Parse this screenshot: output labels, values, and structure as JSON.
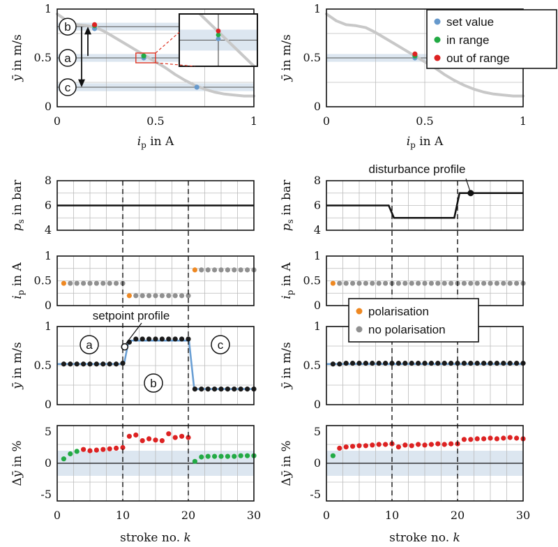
{
  "colors": {
    "set_value": "#6699cc",
    "in_range": "#22aa44",
    "out_of_range": "#dd2222",
    "polarisation": "#ee8822",
    "no_polarisation": "#909090",
    "curve": "#c8c8c8",
    "band": "#dce6f0",
    "profile_line": "#6a9fd4",
    "marker_black": "#1a1a1a",
    "grid": "#bbbbbb"
  },
  "legends": {
    "top": [
      "set value",
      "in range",
      "out of range"
    ],
    "middle": [
      "polarisation",
      "no polarisation"
    ]
  },
  "annotations": {
    "setpoint_profile": "setpoint profile",
    "disturbance_profile": "disturbance profile",
    "circle_a": "a",
    "circle_b": "b",
    "circle_c": "c"
  },
  "chart_data": [
    {
      "id": "tl",
      "type": "line",
      "xlabel": "i_p in A",
      "ylabel": "ȳ in m/s",
      "xlim": [
        0,
        1
      ],
      "ylim": [
        0,
        1
      ],
      "xticks": [
        0,
        0.5,
        1
      ],
      "yticks": [
        0,
        0.5,
        1
      ],
      "xtick_labels": [
        "0",
        "0.5",
        "1"
      ],
      "ytick_labels": [
        "0",
        "0.5",
        "1"
      ],
      "curve": {
        "x": [
          0,
          0.05,
          0.1,
          0.15,
          0.2,
          0.25,
          0.3,
          0.35,
          0.4,
          0.45,
          0.5,
          0.55,
          0.6,
          0.65,
          0.7,
          0.75,
          0.8,
          0.85,
          0.9,
          0.95,
          1.0
        ],
        "y": [
          0.95,
          0.88,
          0.84,
          0.83,
          0.81,
          0.76,
          0.7,
          0.64,
          0.58,
          0.52,
          0.46,
          0.4,
          0.33,
          0.27,
          0.22,
          0.18,
          0.15,
          0.13,
          0.12,
          0.11,
          0.11
        ]
      },
      "bands": [
        {
          "y": 0.82,
          "half": 0.04
        },
        {
          "y": 0.5,
          "half": 0.04
        },
        {
          "y": 0.2,
          "half": 0.04
        }
      ],
      "hlines": [
        0.82,
        0.5,
        0.2
      ],
      "points": [
        {
          "x": 0.19,
          "y": 0.8,
          "kind": "set_value"
        },
        {
          "x": 0.19,
          "y": 0.83,
          "kind": "in_range"
        },
        {
          "x": 0.19,
          "y": 0.84,
          "kind": "out_of_range"
        },
        {
          "x": 0.44,
          "y": 0.5,
          "kind": "set_value"
        },
        {
          "x": 0.44,
          "y": 0.52,
          "kind": "in_range"
        },
        {
          "x": 0.71,
          "y": 0.2,
          "kind": "set_value"
        }
      ],
      "inset": {
        "xlim": [
          0.32,
          0.56
        ],
        "ylim": [
          0.4,
          0.6
        ],
        "vline": 0.44,
        "points": [
          {
            "x": 0.44,
            "y": 0.505,
            "kind": "set_value"
          },
          {
            "x": 0.44,
            "y": 0.52,
            "kind": "in_range"
          },
          {
            "x": 0.44,
            "y": 0.535,
            "kind": "out_of_range"
          }
        ]
      }
    },
    {
      "id": "tr",
      "type": "line",
      "xlabel": "i_p in A",
      "ylabel": "ȳ in m/s",
      "xlim": [
        0,
        1
      ],
      "ylim": [
        0,
        1
      ],
      "xticks": [
        0,
        0.5,
        1
      ],
      "yticks": [
        0,
        0.5,
        1
      ],
      "xtick_labels": [
        "0",
        "0.5",
        "1"
      ],
      "ytick_labels": [
        "0",
        "0.5",
        "1"
      ],
      "curve": {
        "x": [
          0,
          0.05,
          0.1,
          0.15,
          0.2,
          0.25,
          0.3,
          0.35,
          0.4,
          0.45,
          0.5,
          0.55,
          0.6,
          0.65,
          0.7,
          0.75,
          0.8,
          0.85,
          0.9,
          0.95,
          1.0
        ],
        "y": [
          0.95,
          0.88,
          0.84,
          0.83,
          0.81,
          0.76,
          0.7,
          0.64,
          0.58,
          0.52,
          0.46,
          0.4,
          0.33,
          0.27,
          0.22,
          0.18,
          0.15,
          0.13,
          0.12,
          0.11,
          0.11
        ]
      },
      "bands": [
        {
          "y": 0.5,
          "half": 0.04
        }
      ],
      "hlines": [
        0.5
      ],
      "points": [
        {
          "x": 0.45,
          "y": 0.5,
          "kind": "set_value"
        },
        {
          "x": 0.45,
          "y": 0.52,
          "kind": "in_range"
        },
        {
          "x": 0.45,
          "y": 0.54,
          "kind": "out_of_range"
        }
      ]
    },
    {
      "id": "ps_l",
      "type": "line",
      "ylabel": "p_s in bar",
      "xlim": [
        0,
        30
      ],
      "ylim": [
        4,
        8
      ],
      "yticks": [
        4,
        6,
        8
      ],
      "ytick_labels": [
        "4",
        "6",
        "8"
      ],
      "line": {
        "x": [
          0,
          30
        ],
        "y": [
          6,
          6
        ]
      }
    },
    {
      "id": "ps_r",
      "type": "line",
      "ylabel": "p_s in bar",
      "xlim": [
        0,
        30
      ],
      "ylim": [
        4,
        8
      ],
      "yticks": [
        4,
        6,
        8
      ],
      "ytick_labels": [
        "4",
        "6",
        "8"
      ],
      "line": {
        "x": [
          0,
          9.5,
          10.3,
          19.5,
          20.3,
          30
        ],
        "y": [
          6,
          6,
          5,
          5,
          7,
          7
        ]
      },
      "marker": {
        "x": 22,
        "y": 7
      }
    },
    {
      "id": "ip_l",
      "type": "scatter",
      "ylabel": "i_p in A",
      "xlim": [
        0,
        30
      ],
      "ylim": [
        0,
        1
      ],
      "yticks": [
        0,
        0.5,
        1
      ],
      "ytick_labels": [
        "0",
        "0.5",
        "1"
      ],
      "k": [
        1,
        2,
        3,
        4,
        5,
        6,
        7,
        8,
        9,
        10,
        11,
        12,
        13,
        14,
        15,
        16,
        17,
        18,
        19,
        20,
        21,
        22,
        23,
        24,
        25,
        26,
        27,
        28,
        29,
        30
      ],
      "values": [
        0.45,
        0.45,
        0.45,
        0.45,
        0.45,
        0.45,
        0.45,
        0.45,
        0.45,
        0.45,
        0.2,
        0.2,
        0.2,
        0.2,
        0.2,
        0.2,
        0.2,
        0.2,
        0.2,
        0.2,
        0.72,
        0.72,
        0.72,
        0.72,
        0.72,
        0.72,
        0.72,
        0.72,
        0.72,
        0.72
      ],
      "polarised_k": [
        1,
        11,
        21
      ]
    },
    {
      "id": "ip_r",
      "type": "scatter",
      "ylabel": "i_p in A",
      "xlim": [
        0,
        30
      ],
      "ylim": [
        0,
        1
      ],
      "yticks": [
        0,
        0.5,
        1
      ],
      "ytick_labels": [
        "0",
        "0.5",
        "1"
      ],
      "k": [
        1,
        2,
        3,
        4,
        5,
        6,
        7,
        8,
        9,
        10,
        11,
        12,
        13,
        14,
        15,
        16,
        17,
        18,
        19,
        20,
        21,
        22,
        23,
        24,
        25,
        26,
        27,
        28,
        29,
        30
      ],
      "values": [
        0.45,
        0.45,
        0.45,
        0.45,
        0.45,
        0.45,
        0.45,
        0.45,
        0.45,
        0.45,
        0.45,
        0.45,
        0.45,
        0.45,
        0.45,
        0.45,
        0.45,
        0.45,
        0.45,
        0.45,
        0.45,
        0.45,
        0.45,
        0.45,
        0.45,
        0.45,
        0.45,
        0.45,
        0.45,
        0.45
      ],
      "polarised_k": [
        1
      ]
    },
    {
      "id": "y_l",
      "type": "scatter",
      "ylabel": "ȳ in m/s",
      "xlim": [
        0,
        30
      ],
      "ylim": [
        0,
        1
      ],
      "yticks": [
        0,
        0.5,
        1
      ],
      "ytick_labels": [
        "0",
        "0.5",
        "1"
      ],
      "setpoint": {
        "x": [
          0,
          10.2,
          10.9,
          20.1,
          20.9,
          30
        ],
        "y": [
          0.52,
          0.52,
          0.82,
          0.82,
          0.2,
          0.2
        ]
      },
      "k": [
        1,
        2,
        3,
        4,
        5,
        6,
        7,
        8,
        9,
        10,
        11,
        12,
        13,
        14,
        15,
        16,
        17,
        18,
        19,
        20,
        21,
        22,
        23,
        24,
        25,
        26,
        27,
        28,
        29,
        30
      ],
      "values": [
        0.52,
        0.52,
        0.52,
        0.52,
        0.52,
        0.52,
        0.52,
        0.52,
        0.52,
        0.53,
        0.8,
        0.84,
        0.84,
        0.84,
        0.84,
        0.84,
        0.84,
        0.84,
        0.84,
        0.84,
        0.2,
        0.2,
        0.2,
        0.2,
        0.2,
        0.2,
        0.2,
        0.2,
        0.2,
        0.2
      ]
    },
    {
      "id": "y_r",
      "type": "scatter",
      "ylabel": "ȳ in m/s",
      "xlim": [
        0,
        30
      ],
      "ylim": [
        0,
        1
      ],
      "yticks": [
        0,
        0.5,
        1
      ],
      "ytick_labels": [
        "0",
        "0.5",
        "1"
      ],
      "setpoint": {
        "x": [
          0,
          30
        ],
        "y": [
          0.52,
          0.52
        ]
      },
      "k": [
        1,
        2,
        3,
        4,
        5,
        6,
        7,
        8,
        9,
        10,
        11,
        12,
        13,
        14,
        15,
        16,
        17,
        18,
        19,
        20,
        21,
        22,
        23,
        24,
        25,
        26,
        27,
        28,
        29,
        30
      ],
      "values": [
        0.52,
        0.52,
        0.53,
        0.53,
        0.53,
        0.53,
        0.53,
        0.53,
        0.53,
        0.53,
        0.53,
        0.53,
        0.53,
        0.53,
        0.53,
        0.53,
        0.53,
        0.53,
        0.53,
        0.53,
        0.53,
        0.53,
        0.53,
        0.53,
        0.53,
        0.53,
        0.53,
        0.53,
        0.53,
        0.53
      ]
    },
    {
      "id": "dy_l",
      "type": "scatter",
      "ylabel": "Δȳ in %",
      "xlabel": "stroke no. k",
      "xlim": [
        0,
        30
      ],
      "ylim": [
        -6,
        6
      ],
      "xticks": [
        0,
        10,
        20,
        30
      ],
      "xtick_labels": [
        "0",
        "10",
        "20",
        "30"
      ],
      "yticks": [
        -5,
        0,
        5
      ],
      "ytick_labels": [
        "-5",
        "0",
        "5"
      ],
      "band": [
        -2,
        2
      ],
      "k": [
        1,
        2,
        3,
        4,
        5,
        6,
        7,
        8,
        9,
        10,
        11,
        12,
        13,
        14,
        15,
        16,
        17,
        18,
        19,
        20,
        21,
        22,
        23,
        24,
        25,
        26,
        27,
        28,
        29,
        30
      ],
      "values": [
        0.7,
        1.5,
        1.9,
        2.2,
        2.0,
        2.1,
        2.2,
        2.3,
        2.4,
        2.5,
        4.3,
        4.5,
        3.6,
        3.9,
        3.7,
        3.6,
        4.7,
        4.1,
        4.3,
        4.1,
        0.3,
        1.0,
        1.1,
        1.1,
        1.1,
        1.1,
        1.1,
        1.2,
        1.2,
        1.2
      ],
      "status": [
        "in",
        "in",
        "in",
        "out",
        "out",
        "out",
        "out",
        "out",
        "out",
        "out",
        "out",
        "out",
        "out",
        "out",
        "out",
        "out",
        "out",
        "out",
        "out",
        "out",
        "in",
        "in",
        "in",
        "in",
        "in",
        "in",
        "in",
        "in",
        "in",
        "in"
      ]
    },
    {
      "id": "dy_r",
      "type": "scatter",
      "ylabel": "Δȳ in %",
      "xlabel": "stroke no. k",
      "xlim": [
        0,
        30
      ],
      "ylim": [
        -6,
        6
      ],
      "xticks": [
        0,
        10,
        20,
        30
      ],
      "xtick_labels": [
        "0",
        "10",
        "20",
        "30"
      ],
      "yticks": [
        -5,
        0,
        5
      ],
      "ytick_labels": [
        "-5",
        "0",
        "5"
      ],
      "band": [
        -2,
        2
      ],
      "k": [
        1,
        2,
        3,
        4,
        5,
        6,
        7,
        8,
        9,
        10,
        11,
        12,
        13,
        14,
        15,
        16,
        17,
        18,
        19,
        20,
        21,
        22,
        23,
        24,
        25,
        26,
        27,
        28,
        29,
        30
      ],
      "values": [
        1.2,
        2.4,
        2.6,
        2.7,
        2.8,
        2.8,
        2.9,
        3.0,
        3.0,
        3.1,
        2.6,
        2.9,
        2.8,
        3.0,
        2.9,
        3.0,
        3.1,
        3.0,
        3.1,
        3.1,
        3.8,
        3.8,
        3.9,
        3.9,
        4.0,
        3.9,
        4.0,
        4.1,
        4.0,
        3.9
      ],
      "status": [
        "in",
        "out",
        "out",
        "out",
        "out",
        "out",
        "out",
        "out",
        "out",
        "out",
        "out",
        "out",
        "out",
        "out",
        "out",
        "out",
        "out",
        "out",
        "out",
        "out",
        "out",
        "out",
        "out",
        "out",
        "out",
        "out",
        "out",
        "out",
        "out",
        "out"
      ]
    }
  ]
}
